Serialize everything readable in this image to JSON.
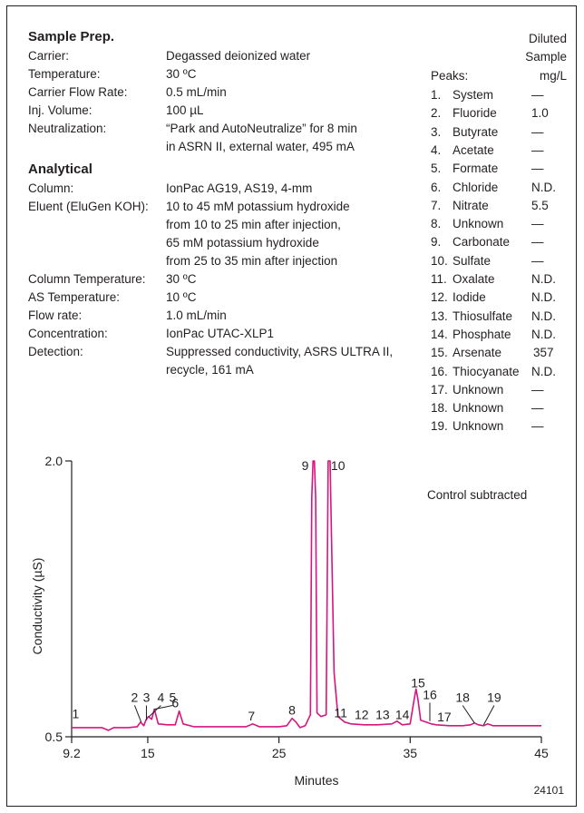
{
  "sample_prep": {
    "heading": "Sample Prep.",
    "rows": [
      {
        "label": "Carrier:",
        "value": "Degassed deionized water"
      },
      {
        "label": "Temperature:",
        "value": "30 ºC"
      },
      {
        "label": "Carrier Flow Rate:",
        "value": "0.5 mL/min"
      },
      {
        "label": "Inj. Volume:",
        "value": "100 µL"
      },
      {
        "label": "Neutralization:",
        "value": "“Park and AutoNeutralize” for 8 min"
      },
      {
        "label": "",
        "value": "in ASRN II, external water, 495 mA"
      }
    ]
  },
  "analytical": {
    "heading": "Analytical",
    "rows": [
      {
        "label": "Column:",
        "value": "IonPac AG19, AS19, 4-mm"
      },
      {
        "label": "Eluent (EluGen KOH):",
        "value": "10 to 45 mM potassium hydroxide"
      },
      {
        "label": "",
        "value": "from 10 to 25 min after injection,"
      },
      {
        "label": "",
        "value": "65 mM potassium hydroxide"
      },
      {
        "label": "",
        "value": "from 25 to 35 min after injection"
      },
      {
        "label": "Column Temperature:",
        "value": "30 ºC"
      },
      {
        "label": "AS Temperature:",
        "value": "10 ºC"
      },
      {
        "label": "Flow rate:",
        "value": "1.0 mL/min"
      },
      {
        "label": "Concentration:",
        "value": "IonPac UTAC-XLP1"
      },
      {
        "label": "Detection:",
        "value": "Suppressed conductivity, ASRS ULTRA II,"
      },
      {
        "label": "",
        "value": "recycle, 161 mA"
      }
    ]
  },
  "peak_table": {
    "col_header_line1": "Diluted",
    "col_header_line2": "Sample",
    "peaks_label": "Peaks:",
    "unit_label": "mg/L",
    "rows": [
      {
        "num": "1.",
        "name": "System",
        "value": "—"
      },
      {
        "num": "2.",
        "name": "Fluoride",
        "value": "1.0"
      },
      {
        "num": "3.",
        "name": "Butyrate",
        "value": "—"
      },
      {
        "num": "4.",
        "name": "Acetate",
        "value": "—"
      },
      {
        "num": "5.",
        "name": "Formate",
        "value": "—"
      },
      {
        "num": "6.",
        "name": "Chloride",
        "value": "N.D."
      },
      {
        "num": "7.",
        "name": "Nitrate",
        "value": "5.5"
      },
      {
        "num": "8.",
        "name": "Unknown",
        "value": "—"
      },
      {
        "num": "9.",
        "name": "Carbonate",
        "value": "—"
      },
      {
        "num": "10.",
        "name": "Sulfate",
        "value": "—"
      },
      {
        "num": "11.",
        "name": "Oxalate",
        "value": "N.D."
      },
      {
        "num": "12.",
        "name": "Iodide",
        "value": "N.D."
      },
      {
        "num": "13.",
        "name": "Thiosulfate",
        "value": "N.D."
      },
      {
        "num": "14.",
        "name": "Phosphate",
        "value": "N.D."
      },
      {
        "num": "15.",
        "name": "Arsenate",
        "value": "357"
      },
      {
        "num": "16.",
        "name": "Thiocyanate",
        "value": "N.D."
      },
      {
        "num": "17.",
        "name": "Unknown",
        "value": "—"
      },
      {
        "num": "18.",
        "name": "Unknown",
        "value": "—"
      },
      {
        "num": "19.",
        "name": "Unknown",
        "value": "—"
      }
    ],
    "footnote": "Control subtracted"
  },
  "figure_id": "24101",
  "chart_data": {
    "type": "line",
    "xlabel": "Minutes",
    "ylabel": "Conductivity (µS)",
    "xlim": [
      9.2,
      45
    ],
    "ylim": [
      0.5,
      2.0
    ],
    "x_ticks": [
      9.2,
      15,
      25,
      35,
      45
    ],
    "y_ticks": [
      2.0,
      0.5
    ],
    "grid": false,
    "line_color": "#d6157e",
    "series": [
      {
        "x": [
          9.2,
          10.2,
          11.5,
          12.0,
          12.4,
          13.5,
          14.2,
          14.45,
          14.7,
          14.85,
          15.05,
          15.3,
          15.5,
          15.8,
          16.5,
          17.1,
          17.4,
          17.7,
          18.5,
          20.0,
          22.5,
          23.0,
          23.5,
          25.0,
          25.6,
          26.0,
          26.3,
          26.6,
          27.0,
          27.4,
          27.5,
          27.6,
          27.7,
          27.8,
          27.9,
          28.2,
          28.6,
          28.75,
          28.9,
          29.0,
          29.2,
          29.5,
          30.0,
          30.5,
          31.5,
          32.5,
          33.6,
          34.0,
          34.4,
          35.0,
          35.3,
          35.45,
          35.6,
          35.8,
          36.2,
          36.6,
          37.0,
          38.0,
          39.0,
          39.6,
          39.9,
          40.2,
          40.6,
          40.9,
          41.3,
          42.5,
          45.0
        ],
        "y": [
          0.55,
          0.55,
          0.55,
          0.535,
          0.55,
          0.55,
          0.555,
          0.58,
          0.56,
          0.59,
          0.61,
          0.595,
          0.65,
          0.57,
          0.565,
          0.565,
          0.64,
          0.57,
          0.555,
          0.555,
          0.555,
          0.57,
          0.555,
          0.555,
          0.56,
          0.6,
          0.58,
          0.55,
          0.56,
          0.62,
          1.8,
          2.0,
          2.0,
          1.8,
          0.63,
          0.61,
          0.62,
          2.0,
          2.0,
          1.6,
          0.85,
          0.61,
          0.58,
          0.57,
          0.565,
          0.565,
          0.57,
          0.585,
          0.565,
          0.57,
          0.7,
          0.76,
          0.7,
          0.59,
          0.58,
          0.57,
          0.565,
          0.56,
          0.56,
          0.565,
          0.575,
          0.565,
          0.56,
          0.57,
          0.56,
          0.56,
          0.56
        ]
      }
    ],
    "peak_labels": [
      {
        "label": "1",
        "x": 9.5,
        "y": 0.6,
        "leader": false
      },
      {
        "label": "2",
        "x": 14.0,
        "y": 0.69,
        "leader": true,
        "target_x": 14.5,
        "target_y": 0.58
      },
      {
        "label": "3",
        "x": 14.9,
        "y": 0.69,
        "leader": true,
        "target_x": 14.9,
        "target_y": 0.59
      },
      {
        "label": "4",
        "x": 16.0,
        "y": 0.69,
        "leader": true,
        "target_x": 15.1,
        "target_y": 0.61
      },
      {
        "label": "5",
        "x": 16.9,
        "y": 0.69,
        "leader": true,
        "target_x": 15.5,
        "target_y": 0.65
      },
      {
        "label": "6",
        "x": 17.1,
        "y": 0.66,
        "leader": false
      },
      {
        "label": "7",
        "x": 22.9,
        "y": 0.59,
        "leader": false
      },
      {
        "label": "8",
        "x": 26.0,
        "y": 0.62,
        "leader": false
      },
      {
        "label": "9",
        "x": 27.0,
        "y": 1.95,
        "leader": false
      },
      {
        "label": "10",
        "x": 29.5,
        "y": 1.95,
        "leader": false
      },
      {
        "label": "11",
        "x": 29.7,
        "y": 0.605,
        "leader": false
      },
      {
        "label": "12",
        "x": 31.3,
        "y": 0.595,
        "leader": false
      },
      {
        "label": "13",
        "x": 32.9,
        "y": 0.595,
        "leader": false
      },
      {
        "label": "14",
        "x": 34.4,
        "y": 0.595,
        "leader": false
      },
      {
        "label": "15",
        "x": 35.6,
        "y": 0.77,
        "leader": false
      },
      {
        "label": "16",
        "x": 36.5,
        "y": 0.705,
        "leader": true,
        "target_x": 36.5,
        "target_y": 0.585
      },
      {
        "label": "17",
        "x": 37.6,
        "y": 0.585,
        "leader": false
      },
      {
        "label": "18",
        "x": 39.0,
        "y": 0.69,
        "leader": true,
        "target_x": 39.9,
        "target_y": 0.575
      },
      {
        "label": "19",
        "x": 41.4,
        "y": 0.69,
        "leader": true,
        "target_x": 40.6,
        "target_y": 0.565
      }
    ]
  }
}
